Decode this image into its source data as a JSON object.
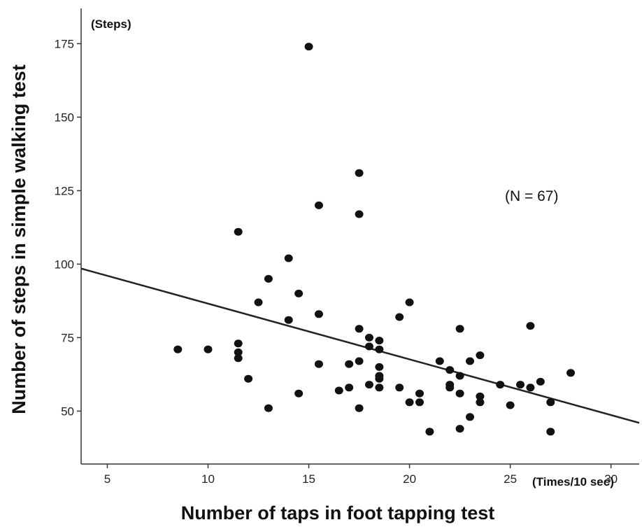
{
  "chart_data": {
    "type": "scatter",
    "xlabel": "Number of taps in foot tapping test",
    "ylabel": "Number of steps in simple walking test",
    "x_unit": "(Times/10 sec)",
    "y_unit": "(Steps)",
    "annotation": "(N = 67)",
    "xlim": [
      3.7,
      31.4
    ],
    "ylim": [
      32,
      187
    ],
    "x_ticks": [
      5,
      10,
      15,
      20,
      25,
      30
    ],
    "y_ticks": [
      50,
      75,
      100,
      125,
      150,
      175
    ],
    "grid": false,
    "regression_line": {
      "x": [
        3.7,
        31.4
      ],
      "y": [
        98.5,
        46
      ]
    },
    "points": [
      [
        8.5,
        71
      ],
      [
        10,
        71
      ],
      [
        11.5,
        111
      ],
      [
        11.5,
        73
      ],
      [
        11.5,
        70
      ],
      [
        11.5,
        68
      ],
      [
        12,
        61
      ],
      [
        12.5,
        87
      ],
      [
        13,
        95
      ],
      [
        13,
        51
      ],
      [
        14,
        102
      ],
      [
        14,
        81
      ],
      [
        14.5,
        90
      ],
      [
        14.5,
        56
      ],
      [
        15,
        174
      ],
      [
        15.5,
        120
      ],
      [
        15.5,
        83
      ],
      [
        15.5,
        66
      ],
      [
        16.5,
        57
      ],
      [
        17,
        66
      ],
      [
        17,
        58
      ],
      [
        17.5,
        131
      ],
      [
        17.5,
        117
      ],
      [
        17.5,
        78
      ],
      [
        17.5,
        67
      ],
      [
        17.5,
        51
      ],
      [
        18,
        75
      ],
      [
        18,
        72
      ],
      [
        18,
        59
      ],
      [
        18.5,
        74
      ],
      [
        18.5,
        71
      ],
      [
        18.5,
        65
      ],
      [
        18.5,
        62
      ],
      [
        18.5,
        61
      ],
      [
        18.5,
        58
      ],
      [
        19.5,
        82
      ],
      [
        19.5,
        58
      ],
      [
        20,
        87
      ],
      [
        20,
        53
      ],
      [
        20.5,
        56
      ],
      [
        20.5,
        53
      ],
      [
        21,
        43
      ],
      [
        21.5,
        67
      ],
      [
        22,
        64
      ],
      [
        22,
        59
      ],
      [
        22,
        58
      ],
      [
        22.5,
        78
      ],
      [
        22.5,
        62
      ],
      [
        22.5,
        56
      ],
      [
        22.5,
        44
      ],
      [
        23,
        67
      ],
      [
        23,
        48
      ],
      [
        23.5,
        69
      ],
      [
        23.5,
        55
      ],
      [
        23.5,
        53
      ],
      [
        24.5,
        59
      ],
      [
        25,
        52
      ],
      [
        25.5,
        59
      ],
      [
        26,
        79
      ],
      [
        26,
        58
      ],
      [
        26.5,
        60
      ],
      [
        27,
        53
      ],
      [
        27,
        43
      ],
      [
        28,
        63
      ]
    ]
  }
}
